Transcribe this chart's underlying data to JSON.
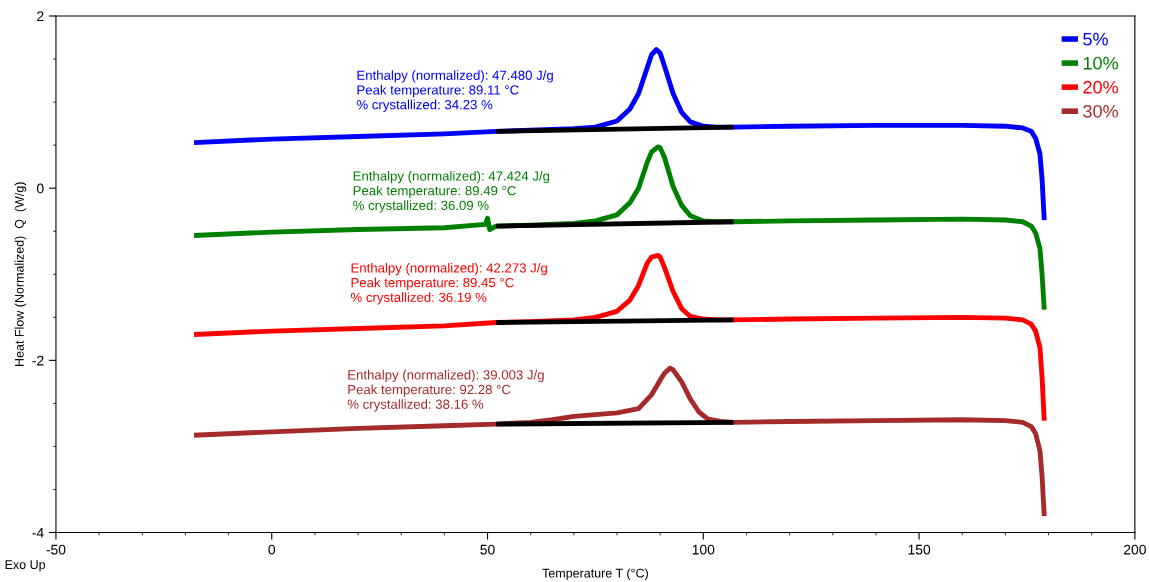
{
  "chart_data": {
    "type": "line",
    "xlabel": "Temperature T (°C)",
    "ylabel": "Heat Flow (Normalized)  Q  (W/g)",
    "xlim": [
      -50,
      200
    ],
    "ylim": [
      -4,
      2
    ],
    "xticks": [
      -50,
      {
        "value": -40,
        "label": null
      },
      {
        "value": -30,
        "label": null
      },
      {
        "value": -20,
        "label": null
      },
      {
        "value": -10,
        "label": null
      },
      0,
      {
        "value": 10,
        "label": null
      },
      {
        "value": 20,
        "label": null
      },
      {
        "value": 30,
        "label": null
      },
      {
        "value": 40,
        "label": null
      },
      50,
      {
        "value": 60,
        "label": null
      },
      {
        "value": 70,
        "label": null
      },
      {
        "value": 80,
        "label": null
      },
      {
        "value": 90,
        "label": null
      },
      100,
      {
        "value": 110,
        "label": null
      },
      {
        "value": 120,
        "label": null
      },
      {
        "value": 130,
        "label": null
      },
      {
        "value": 140,
        "label": null
      },
      150,
      {
        "value": 160,
        "label": null
      },
      {
        "value": 170,
        "label": null
      },
      {
        "value": 180,
        "label": null
      },
      {
        "value": 190,
        "label": null
      },
      200
    ],
    "yticks": [
      -4,
      {
        "value": -3.5,
        "label": null
      },
      {
        "value": -3,
        "label": null
      },
      {
        "value": -2.5,
        "label": null
      },
      -2,
      {
        "value": -1.5,
        "label": null
      },
      {
        "value": -1,
        "label": null
      },
      {
        "value": -0.5,
        "label": null
      },
      0,
      {
        "value": 0.5,
        "label": null
      },
      {
        "value": 1,
        "label": null
      },
      {
        "value": 1.5,
        "label": null
      },
      2
    ],
    "grid": false,
    "legend": "top right",
    "marker": "none",
    "line_style": "solid",
    "series": [
      {
        "name": "5%",
        "color": "#0000ff",
        "x": [
          -18,
          0,
          20,
          40,
          52,
          70,
          75,
          80,
          83,
          85,
          87,
          88,
          89.1,
          90,
          91,
          93,
          95,
          97,
          100,
          103,
          107,
          120,
          140,
          160,
          170,
          174,
          176,
          177,
          178,
          178.5,
          179
        ],
        "values": [
          0.53,
          0.57,
          0.6,
          0.63,
          0.66,
          0.69,
          0.71,
          0.78,
          0.92,
          1.1,
          1.4,
          1.55,
          1.61,
          1.57,
          1.42,
          1.1,
          0.88,
          0.77,
          0.72,
          0.71,
          0.71,
          0.72,
          0.73,
          0.73,
          0.72,
          0.7,
          0.66,
          0.58,
          0.4,
          0.1,
          -0.37
        ]
      },
      {
        "name": "10%",
        "color": "#008000",
        "x": [
          -18,
          0,
          20,
          40,
          49.5,
          50,
          50.5,
          52,
          60,
          70,
          75,
          80,
          83,
          85,
          87,
          88,
          89.5,
          90,
          91,
          93,
          95,
          97,
          100,
          103,
          107,
          120,
          140,
          160,
          170,
          174,
          176,
          177,
          178,
          178.5,
          179
        ],
        "values": [
          -0.55,
          -0.51,
          -0.48,
          -0.46,
          -0.42,
          -0.35,
          -0.48,
          -0.44,
          -0.43,
          -0.41,
          -0.38,
          -0.31,
          -0.17,
          0.0,
          0.3,
          0.42,
          0.48,
          0.47,
          0.36,
          0.02,
          -0.2,
          -0.32,
          -0.38,
          -0.39,
          -0.39,
          -0.38,
          -0.37,
          -0.36,
          -0.37,
          -0.39,
          -0.44,
          -0.52,
          -0.7,
          -1.0,
          -1.41
        ]
      },
      {
        "name": "20%",
        "color": "#ff0000",
        "x": [
          -18,
          0,
          20,
          40,
          52,
          60,
          70,
          75,
          80,
          83,
          85,
          87,
          88,
          89.45,
          90,
          91,
          93,
          95,
          97,
          100,
          103,
          107,
          120,
          140,
          160,
          170,
          174,
          176,
          177,
          178,
          178.5,
          179
        ],
        "values": [
          -1.7,
          -1.66,
          -1.63,
          -1.6,
          -1.56,
          -1.55,
          -1.53,
          -1.5,
          -1.43,
          -1.3,
          -1.13,
          -0.87,
          -0.8,
          -0.78,
          -0.8,
          -0.92,
          -1.2,
          -1.4,
          -1.49,
          -1.52,
          -1.53,
          -1.53,
          -1.52,
          -1.51,
          -1.5,
          -1.51,
          -1.53,
          -1.58,
          -1.66,
          -1.85,
          -2.2,
          -2.7
        ]
      },
      {
        "name": "30%",
        "color": "#a52a2a",
        "x": [
          -18,
          0,
          20,
          40,
          52,
          60,
          65,
          70,
          75,
          80,
          85,
          88,
          90,
          91,
          92.3,
          93,
          95,
          97,
          99,
          101,
          104,
          107,
          120,
          140,
          160,
          170,
          174,
          176,
          177,
          178,
          178.5,
          179
        ],
        "values": [
          -2.87,
          -2.83,
          -2.79,
          -2.76,
          -2.74,
          -2.72,
          -2.69,
          -2.65,
          -2.63,
          -2.61,
          -2.56,
          -2.4,
          -2.23,
          -2.15,
          -2.09,
          -2.11,
          -2.25,
          -2.45,
          -2.6,
          -2.68,
          -2.71,
          -2.72,
          -2.71,
          -2.7,
          -2.69,
          -2.7,
          -2.72,
          -2.77,
          -2.85,
          -3.05,
          -3.35,
          -3.81
        ]
      },
      {
        "color": "#000000",
        "x": [
          52,
          107
        ],
        "values": [
          0.66,
          0.71
        ]
      },
      {
        "color": "#000000",
        "x": [
          52,
          107
        ],
        "values": [
          -0.44,
          -0.39
        ]
      },
      {
        "color": "#000000",
        "x": [
          52,
          107
        ],
        "values": [
          -1.56,
          -1.53
        ]
      },
      {
        "color": "#000000",
        "x": [
          52,
          107
        ],
        "values": [
          -2.74,
          -2.72
        ]
      }
    ],
    "annotations": [
      "Enthalpy (normalized): 47.480 J/g\nPeak temperature: 89.11 °C\n% crystallized: 34.23 %",
      "Enthalpy (normalized): 47.424 J/g\nPeak temperature: 89.49 °C\n% crystallized: 36.09 %",
      "Enthalpy (normalized): 42.273 J/g\nPeak temperature: 89.45 °C\n% crystallized: 36.19 %",
      "Enthalpy (normalized): 39.003 J/g\nPeak temperature: 92.28 °C\n% crystallized: 38.16 %",
      "Exo Up"
    ]
  }
}
